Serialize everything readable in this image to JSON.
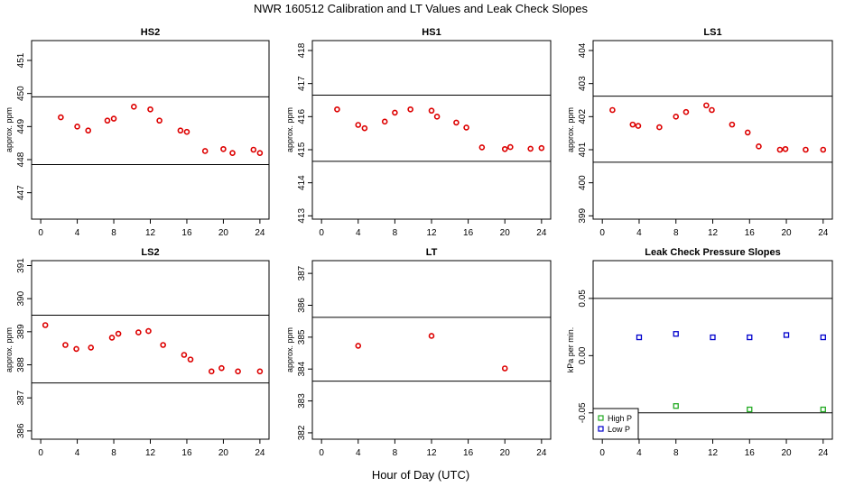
{
  "figure": {
    "title": "NWR  160512  Calibration and LT Values and Leak Check Slopes",
    "xlabel": "Hour of Day (UTC)"
  },
  "colors": {
    "data": "#dd0000",
    "high_p": "#22aa22",
    "low_p": "#0000cc",
    "axis": "#000000"
  },
  "chart_data": [
    {
      "id": "hs2",
      "type": "scatter",
      "title": "HS2",
      "ylabel": "approx. ppm",
      "xlim": [
        -1,
        25
      ],
      "xticks": [
        0,
        4,
        8,
        12,
        16,
        20,
        24
      ],
      "ylim": [
        446.2,
        451.6
      ],
      "yticks": [
        447,
        448,
        449,
        450,
        451
      ],
      "hlines": [
        447.85,
        449.9
      ],
      "series": [
        {
          "name": "HS2",
          "color": "#dd0000",
          "points": [
            [
              2.2,
              449.28
            ],
            [
              4,
              449.0
            ],
            [
              5.2,
              448.88
            ],
            [
              7.3,
              449.18
            ],
            [
              8,
              449.24
            ],
            [
              10.2,
              449.6
            ],
            [
              12,
              449.52
            ],
            [
              13,
              449.18
            ],
            [
              15.3,
              448.88
            ],
            [
              16,
              448.84
            ],
            [
              18,
              448.26
            ],
            [
              20,
              448.32
            ],
            [
              21,
              448.2
            ],
            [
              23.3,
              448.3
            ],
            [
              24,
              448.2
            ]
          ]
        }
      ]
    },
    {
      "id": "hs1",
      "type": "scatter",
      "title": "HS1",
      "ylabel": "approx. ppm",
      "xlim": [
        -1,
        25
      ],
      "xticks": [
        0,
        4,
        8,
        12,
        16,
        20,
        24
      ],
      "ylim": [
        412.9,
        418.3
      ],
      "yticks": [
        413,
        414,
        415,
        416,
        417,
        418
      ],
      "hlines": [
        414.65,
        416.65
      ],
      "series": [
        {
          "name": "HS1",
          "color": "#dd0000",
          "points": [
            [
              1.7,
              416.22
            ],
            [
              4,
              415.75
            ],
            [
              4.7,
              415.65
            ],
            [
              6.9,
              415.85
            ],
            [
              8,
              416.12
            ],
            [
              9.7,
              416.22
            ],
            [
              12,
              416.18
            ],
            [
              12.6,
              416.0
            ],
            [
              14.7,
              415.82
            ],
            [
              15.8,
              415.67
            ],
            [
              17.5,
              415.07
            ],
            [
              20,
              415.02
            ],
            [
              20.6,
              415.08
            ],
            [
              22.8,
              415.03
            ],
            [
              24,
              415.05
            ]
          ]
        }
      ]
    },
    {
      "id": "ls1",
      "type": "scatter",
      "title": "LS1",
      "ylabel": "approx. ppm",
      "xlim": [
        -1,
        25
      ],
      "xticks": [
        0,
        4,
        8,
        12,
        16,
        20,
        24
      ],
      "ylim": [
        398.9,
        404.3
      ],
      "yticks": [
        399,
        400,
        401,
        402,
        403,
        404
      ],
      "hlines": [
        400.62,
        402.62
      ],
      "series": [
        {
          "name": "LS1",
          "color": "#dd0000",
          "points": [
            [
              1.1,
              402.2
            ],
            [
              3.3,
              401.76
            ],
            [
              3.9,
              401.72
            ],
            [
              6.2,
              401.68
            ],
            [
              8,
              402.0
            ],
            [
              9.1,
              402.14
            ],
            [
              11.3,
              402.34
            ],
            [
              11.9,
              402.2
            ],
            [
              14.1,
              401.76
            ],
            [
              15.8,
              401.52
            ],
            [
              17,
              401.1
            ],
            [
              19.3,
              401.0
            ],
            [
              19.9,
              401.02
            ],
            [
              22.1,
              401.0
            ],
            [
              24,
              401.0
            ]
          ]
        }
      ]
    },
    {
      "id": "ls2",
      "type": "scatter",
      "title": "LS2",
      "ylabel": "approx. ppm",
      "xlim": [
        -1,
        25
      ],
      "xticks": [
        0,
        4,
        8,
        12,
        16,
        20,
        24
      ],
      "ylim": [
        385.75,
        391.15
      ],
      "yticks": [
        386,
        387,
        388,
        389,
        390,
        391
      ],
      "hlines": [
        387.45,
        389.5
      ],
      "series": [
        {
          "name": "LS2",
          "color": "#dd0000",
          "points": [
            [
              0.5,
              389.2
            ],
            [
              2.7,
              388.6
            ],
            [
              3.9,
              388.48
            ],
            [
              5.5,
              388.52
            ],
            [
              7.8,
              388.82
            ],
            [
              8.5,
              388.94
            ],
            [
              10.7,
              388.98
            ],
            [
              11.8,
              389.02
            ],
            [
              13.4,
              388.6
            ],
            [
              15.7,
              388.3
            ],
            [
              16.4,
              388.16
            ],
            [
              18.7,
              387.8
            ],
            [
              19.8,
              387.9
            ],
            [
              21.6,
              387.8
            ],
            [
              24,
              387.8
            ]
          ]
        }
      ]
    },
    {
      "id": "lt",
      "type": "scatter",
      "title": "LT",
      "ylabel": "approx. ppm",
      "xlim": [
        -1,
        25
      ],
      "xticks": [
        0,
        4,
        8,
        12,
        16,
        20,
        24
      ],
      "ylim": [
        381.8,
        387.4
      ],
      "yticks": [
        382,
        383,
        384,
        385,
        386,
        387
      ],
      "hlines": [
        383.62,
        385.62
      ],
      "series": [
        {
          "name": "LT",
          "color": "#dd0000",
          "points": [
            [
              4,
              384.73
            ],
            [
              12,
              385.04
            ],
            [
              20,
              384.02
            ]
          ]
        }
      ]
    },
    {
      "id": "leak",
      "type": "scatter",
      "title": "Leak Check Pressure Slopes",
      "ylabel": "kPa per min.",
      "xlim": [
        -1,
        25
      ],
      "xticks": [
        0,
        4,
        8,
        12,
        16,
        20,
        24
      ],
      "ylim": [
        -0.073,
        0.083
      ],
      "yticks": [
        -0.05,
        0.0,
        0.05
      ],
      "ytick_labels": [
        "-0.05",
        "0.00",
        "0.05"
      ],
      "hlines": [
        -0.05,
        0.05
      ],
      "legend": {
        "position": "bottom-left",
        "entries": [
          "High P",
          "Low P"
        ]
      },
      "series": [
        {
          "name": "High P",
          "color": "#22aa22",
          "points": [
            [
              8,
              -0.044
            ],
            [
              16,
              -0.047
            ],
            [
              24,
              -0.047
            ]
          ]
        },
        {
          "name": "Low P",
          "color": "#0000cc",
          "points": [
            [
              4,
              0.016
            ],
            [
              8,
              0.019
            ],
            [
              12,
              0.016
            ],
            [
              16,
              0.016
            ],
            [
              20,
              0.018
            ],
            [
              24,
              0.016
            ]
          ]
        }
      ]
    }
  ]
}
